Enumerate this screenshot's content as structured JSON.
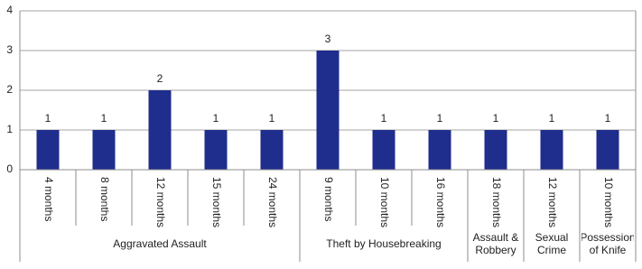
{
  "chart_data": {
    "type": "bar",
    "color": "#1f2d8c",
    "grid": true,
    "ylim": [
      0,
      4
    ],
    "yticks": [
      0,
      1,
      2,
      3,
      4
    ],
    "groups": [
      {
        "name": "Aggravated Assault",
        "categories": [
          "4 months",
          "8 months",
          "12 months",
          "15 months",
          "24 months"
        ],
        "values": [
          1,
          1,
          2,
          1,
          1
        ]
      },
      {
        "name": "Theft by Housebreaking",
        "categories": [
          "9 months",
          "10 months",
          "16 months"
        ],
        "values": [
          3,
          1,
          1
        ]
      },
      {
        "name": "Assault & Robbery",
        "categories": [
          "18 months"
        ],
        "values": [
          1
        ]
      },
      {
        "name": "Sexual Crime",
        "categories": [
          "12 months"
        ],
        "values": [
          1
        ]
      },
      {
        "name": "Possession of Knife",
        "categories": [
          "10 months"
        ],
        "values": [
          1
        ]
      }
    ]
  }
}
